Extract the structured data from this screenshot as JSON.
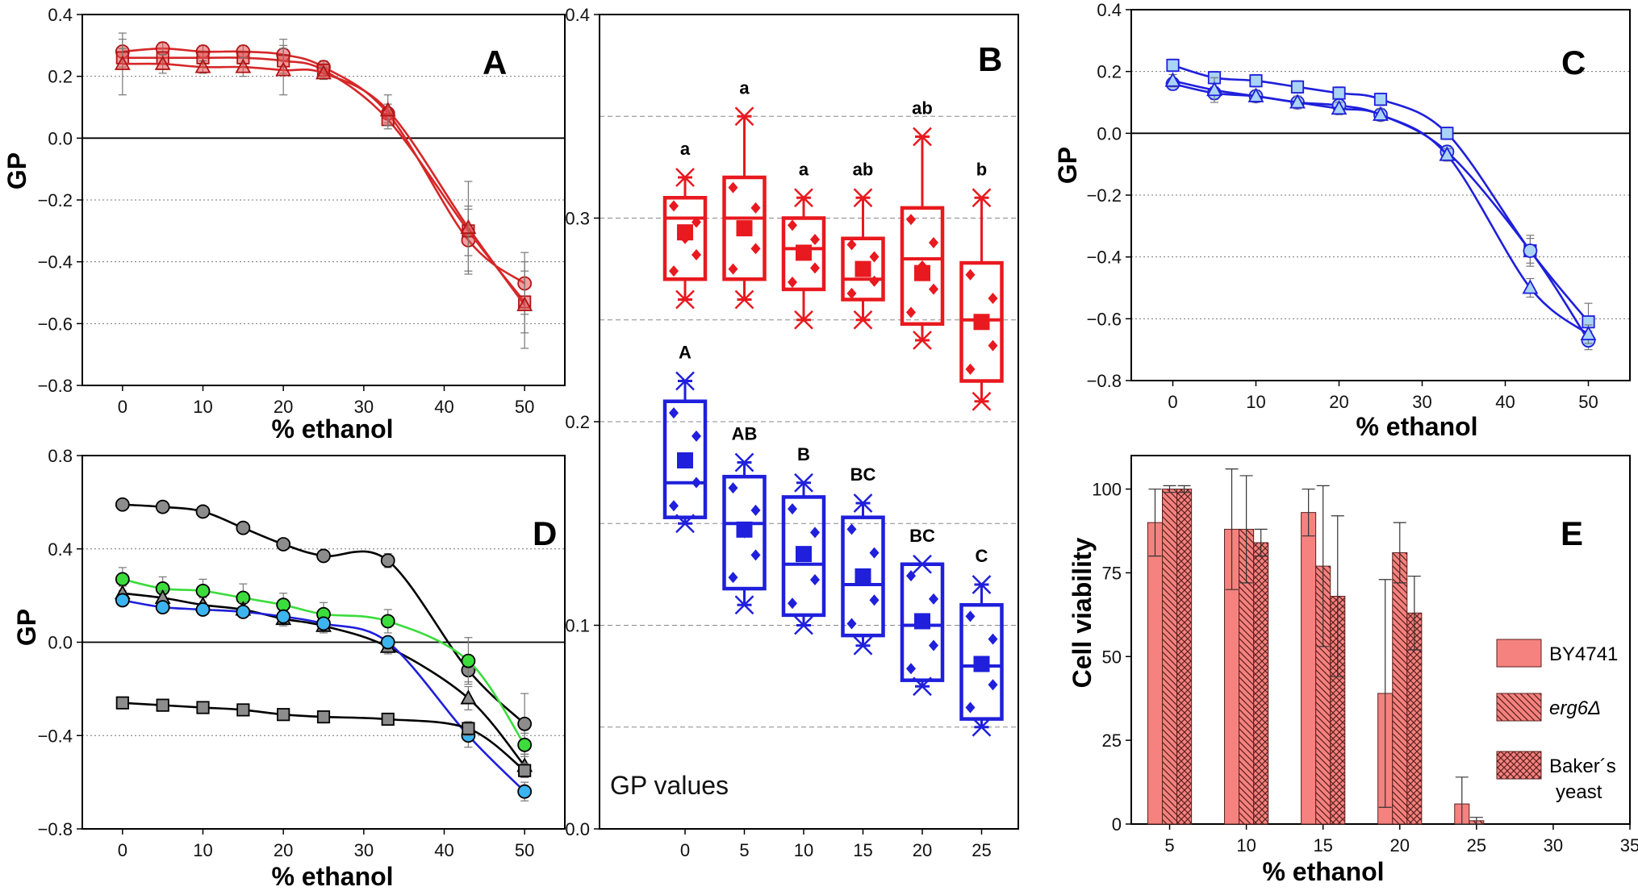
{
  "chart_data": [
    {
      "panel": "A",
      "type": "line",
      "xlabel": "% ethanol",
      "ylabel": "GP",
      "xlim": [
        -5,
        55
      ],
      "ylim": [
        -0.8,
        0.4
      ],
      "xticks": [
        0,
        10,
        20,
        30,
        40,
        50
      ],
      "yticks": [
        -0.8,
        -0.6,
        -0.4,
        -0.2,
        0.0,
        0.2,
        0.4
      ],
      "grid": "dotted-horizontal",
      "color": "#d62728",
      "x": [
        0,
        5,
        10,
        15,
        20,
        25,
        33,
        43,
        50
      ],
      "series": [
        {
          "marker": "circle",
          "values": [
            0.28,
            0.29,
            0.28,
            0.28,
            0.27,
            0.23,
            0.08,
            -0.33,
            -0.47
          ],
          "errors": [
            0.04,
            0.02,
            0.02,
            0.02,
            0.05,
            0.02,
            0.03,
            0.1,
            0.1
          ]
        },
        {
          "marker": "square",
          "values": [
            0.26,
            0.26,
            0.26,
            0.26,
            0.25,
            0.22,
            0.06,
            -0.3,
            -0.53
          ],
          "errors": [
            0.03,
            0.02,
            0.02,
            0.02,
            0.04,
            0.02,
            0.03,
            0.08,
            0.1
          ]
        },
        {
          "marker": "triangle",
          "values": [
            0.24,
            0.24,
            0.23,
            0.23,
            0.22,
            0.21,
            0.09,
            -0.29,
            -0.54
          ],
          "errors": [
            0.1,
            0.03,
            0.02,
            0.03,
            0.08,
            0.02,
            0.05,
            0.15,
            0.14
          ]
        }
      ]
    },
    {
      "panel": "B",
      "type": "box",
      "caption": "GP values",
      "ylim": [
        0.0,
        0.4
      ],
      "yticks": [
        0.0,
        0.1,
        0.2,
        0.3,
        0.4
      ],
      "categories": [
        "0",
        "5",
        "10",
        "15",
        "20",
        "25"
      ],
      "grid": "dashed-horizontal",
      "series": [
        {
          "color": "#e8191f",
          "letters": [
            "a",
            "a",
            "a",
            "ab",
            "ab",
            "b"
          ],
          "boxes": [
            {
              "min": 0.26,
              "q1": 0.27,
              "median": 0.3,
              "q3": 0.31,
              "max": 0.32,
              "mean": 0.293
            },
            {
              "min": 0.26,
              "q1": 0.27,
              "median": 0.3,
              "q3": 0.32,
              "max": 0.35,
              "mean": 0.295
            },
            {
              "min": 0.25,
              "q1": 0.265,
              "median": 0.285,
              "q3": 0.3,
              "max": 0.31,
              "mean": 0.283
            },
            {
              "min": 0.25,
              "q1": 0.26,
              "median": 0.27,
              "q3": 0.29,
              "max": 0.31,
              "mean": 0.275
            },
            {
              "min": 0.24,
              "q1": 0.248,
              "median": 0.28,
              "q3": 0.305,
              "max": 0.34,
              "mean": 0.273
            },
            {
              "min": 0.21,
              "q1": 0.22,
              "median": 0.25,
              "q3": 0.278,
              "max": 0.31,
              "mean": 0.249
            }
          ]
        },
        {
          "color": "#1f1fdc",
          "letters": [
            "A",
            "AB",
            "B",
            "BC",
            "BC",
            "C"
          ],
          "boxes": [
            {
              "min": 0.15,
              "q1": 0.153,
              "median": 0.17,
              "q3": 0.21,
              "max": 0.22,
              "mean": 0.181
            },
            {
              "min": 0.11,
              "q1": 0.118,
              "median": 0.15,
              "q3": 0.173,
              "max": 0.18,
              "mean": 0.147
            },
            {
              "min": 0.1,
              "q1": 0.105,
              "median": 0.13,
              "q3": 0.163,
              "max": 0.17,
              "mean": 0.135
            },
            {
              "min": 0.09,
              "q1": 0.095,
              "median": 0.12,
              "q3": 0.153,
              "max": 0.16,
              "mean": 0.124
            },
            {
              "min": 0.07,
              "q1": 0.073,
              "median": 0.1,
              "q3": 0.13,
              "max": 0.13,
              "mean": 0.102
            },
            {
              "min": 0.05,
              "q1": 0.054,
              "median": 0.08,
              "q3": 0.11,
              "max": 0.12,
              "mean": 0.081
            }
          ]
        }
      ]
    },
    {
      "panel": "C",
      "type": "line",
      "xlabel": "% ethanol",
      "ylabel": "GP",
      "xlim": [
        -5,
        55
      ],
      "ylim": [
        -0.8,
        0.4
      ],
      "xticks": [
        0,
        10,
        20,
        30,
        40,
        50
      ],
      "yticks": [
        -0.8,
        -0.6,
        -0.4,
        -0.2,
        0.0,
        0.2,
        0.4
      ],
      "grid": "dotted-horizontal",
      "color": "#1f1fdc",
      "fill": "#aad4f5",
      "x": [
        0,
        5,
        10,
        15,
        20,
        25,
        33,
        43,
        50
      ],
      "series": [
        {
          "marker": "square",
          "values": [
            0.22,
            0.18,
            0.17,
            0.15,
            0.13,
            0.11,
            0.0,
            -0.38,
            -0.61
          ],
          "errors": [
            0.02,
            0.02,
            0.02,
            0.02,
            0.02,
            0.02,
            0.02,
            0.05,
            0.06
          ]
        },
        {
          "marker": "circle",
          "values": [
            0.16,
            0.13,
            0.12,
            0.1,
            0.09,
            0.06,
            -0.06,
            -0.38,
            -0.67
          ],
          "errors": [
            0.02,
            0.02,
            0.02,
            0.02,
            0.02,
            0.02,
            0.02,
            0.04,
            0.03
          ]
        },
        {
          "marker": "triangle",
          "values": [
            0.17,
            0.14,
            0.12,
            0.1,
            0.08,
            0.06,
            -0.07,
            -0.5,
            -0.65
          ],
          "errors": [
            0.02,
            0.04,
            0.02,
            0.02,
            0.02,
            0.02,
            0.02,
            0.03,
            0.03
          ]
        }
      ]
    },
    {
      "panel": "D",
      "type": "line",
      "xlabel": "% ethanol",
      "ylabel": "GP",
      "xlim": [
        -5,
        55
      ],
      "ylim": [
        -0.8,
        0.8
      ],
      "xticks": [
        0,
        10,
        20,
        30,
        40,
        50
      ],
      "yticks": [
        -0.8,
        -0.4,
        0.0,
        0.4,
        0.8
      ],
      "grid": "dotted-horizontal",
      "x": [
        0,
        5,
        10,
        15,
        20,
        25,
        33,
        43,
        50
      ],
      "series": [
        {
          "marker": "circle",
          "fill": "#8c8c8c",
          "line": "#000000",
          "values": [
            0.59,
            0.58,
            0.56,
            0.49,
            0.42,
            0.37,
            0.35,
            -0.12,
            -0.35
          ],
          "errors": [
            0.02,
            0.02,
            0.02,
            0.02,
            0.02,
            0.02,
            0.03,
            0.05,
            0.13
          ]
        },
        {
          "marker": "circle",
          "fill": "#3cdc3c",
          "line": "#3cdc3c",
          "values": [
            0.27,
            0.23,
            0.22,
            0.19,
            0.16,
            0.12,
            0.09,
            -0.08,
            -0.44
          ],
          "errors": [
            0.05,
            0.05,
            0.05,
            0.06,
            0.05,
            0.05,
            0.05,
            0.1,
            0.05
          ]
        },
        {
          "marker": "triangle",
          "fill": "#8c8c8c",
          "line": "#000000",
          "values": [
            0.21,
            0.19,
            0.16,
            0.14,
            0.1,
            0.07,
            -0.02,
            -0.24,
            -0.53
          ],
          "errors": [
            0.03,
            0.03,
            0.03,
            0.03,
            0.03,
            0.03,
            0.03,
            0.05,
            0.05
          ]
        },
        {
          "marker": "circle",
          "fill": "#3cb4f0",
          "line": "#1f1fdc",
          "values": [
            0.18,
            0.15,
            0.14,
            0.13,
            0.11,
            0.08,
            0.0,
            -0.4,
            -0.64
          ],
          "errors": [
            0.02,
            0.02,
            0.02,
            0.02,
            0.02,
            0.02,
            0.02,
            0.05,
            0.04
          ]
        },
        {
          "marker": "square",
          "fill": "#8c8c8c",
          "line": "#000000",
          "values": [
            -0.26,
            -0.27,
            -0.28,
            -0.29,
            -0.31,
            -0.32,
            -0.33,
            -0.37,
            -0.55
          ],
          "errors": [
            0.02,
            0.02,
            0.02,
            0.02,
            0.02,
            0.02,
            0.02,
            0.03,
            0.03
          ]
        }
      ]
    },
    {
      "panel": "E",
      "type": "bar",
      "xlabel": "% ethanol",
      "ylabel": "Cell viability",
      "xlim": [
        2.5,
        35
      ],
      "ylim": [
        0,
        110
      ],
      "xticks": [
        5,
        10,
        15,
        20,
        25,
        30,
        35
      ],
      "yticks": [
        0,
        25,
        50,
        75,
        100
      ],
      "categories": [
        5,
        10,
        15,
        20,
        25
      ],
      "color": "#f5827e",
      "series": [
        {
          "name": "BY4741",
          "pattern": "solid",
          "values": [
            90,
            88,
            93,
            39,
            6
          ],
          "errors": [
            10,
            18,
            7,
            34,
            8
          ]
        },
        {
          "name": "erg6Δ",
          "pattern": "hatch",
          "values": [
            100,
            88,
            77,
            81,
            1
          ],
          "errors": [
            1,
            16,
            24,
            9,
            1
          ]
        },
        {
          "name": "Baker´s yeast",
          "pattern": "crosshatch",
          "values": [
            100,
            84,
            68,
            63,
            0
          ],
          "errors": [
            1,
            4,
            24,
            11,
            0
          ]
        }
      ],
      "legend_placement": "right"
    }
  ],
  "panels": {
    "a": {
      "letter": "A",
      "xlabel": "% ethanol",
      "ylabel": "GP"
    },
    "b": {
      "letter": "B",
      "caption": "GP values"
    },
    "c": {
      "letter": "C",
      "xlabel": "% ethanol",
      "ylabel": "GP"
    },
    "d": {
      "letter": "D",
      "xlabel": "% ethanol",
      "ylabel": "GP"
    },
    "e": {
      "letter": "E",
      "xlabel": "% ethanol",
      "ylabel": "Cell viability",
      "legend": {
        "item1": "BY4741",
        "item2": "erg6Δ",
        "item3a": "Baker´s",
        "item3b": "yeast"
      }
    }
  }
}
